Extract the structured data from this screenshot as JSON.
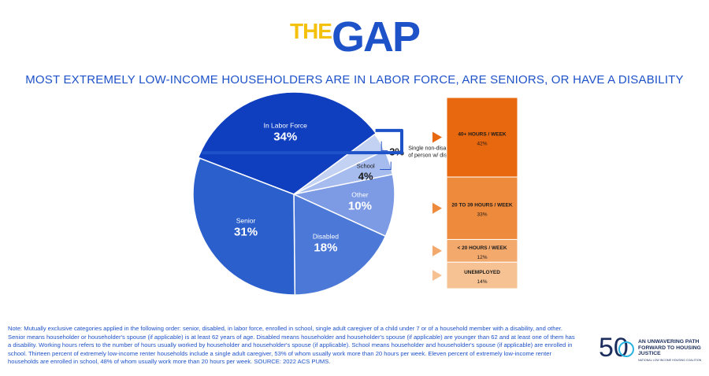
{
  "brand": {
    "the": "THE",
    "gap": "GAP"
  },
  "headline": "MOST EXTREMELY LOW-INCOME HOUSEHOLDERS ARE IN LABOR FORCE, ARE SENIORS, OR HAVE A DISABILITY",
  "chart_data": [
    {
      "type": "pie",
      "slices": [
        {
          "label": "In Labor Force",
          "value_label": "34%",
          "value": 34,
          "color": "#0f3fbf"
        },
        {
          "label": "Single non-disabled non-senior caregiver of person w/ disability or young child",
          "value_label": "3%",
          "value": 3,
          "color": "#c3d1f2"
        },
        {
          "label": "School",
          "value_label": "4%",
          "value": 4,
          "color": "#a6bbee"
        },
        {
          "label": "Other",
          "value_label": "10%",
          "value": 10,
          "color": "#7d9be5"
        },
        {
          "label": "Disabled",
          "value_label": "18%",
          "value": 18,
          "color": "#4c79d8"
        },
        {
          "label": "Senior",
          "value_label": "31%",
          "value": 31,
          "color": "#2b5fcc"
        }
      ]
    },
    {
      "type": "bar",
      "stacked": true,
      "categories": [
        "40+ HOURS / WEEK",
        "20 TO 39 HOURS / WEEK",
        "< 20 HOURS / WEEK",
        "UNEMPLOYED"
      ],
      "values": [
        42,
        33,
        12,
        14
      ],
      "value_labels": [
        "42%",
        "33%",
        "12%",
        "14%"
      ],
      "colors": [
        "#e8680f",
        "#ee8a3c",
        "#f3a86c",
        "#f6c193"
      ]
    }
  ],
  "note": "Note: Mutually exclusive categories applied in the following order: senior, disabled, in labor force, enrolled in school, single adult caregiver of a child under 7 or of a household member with a disability, and other. Senior means householder or householder's spouse (if applicable) is at least 62 years of age. Disabled means householder and householder's spouse (if applicable) are younger than 62 and at least one of them has a disability. Working hours refers to the number of hours usually worked by householder and householder's spouse (if applicable). School means householder and householder's spouse (if applicable) are enrolled in school. Thirteen percent of extremely low-income renter households include a single adult caregiver, 53% of whom usually work more than 20 hours per week. Eleven percent of extremely low-income renter households are enrolled in school, 48% of whom usually work more than 20 hours per week. SOURCE: 2022 ACS PUMS.",
  "logo": {
    "number": "50",
    "tagline": "AN UNWAVERING PATH FORWARD TO HOUSING JUSTICE",
    "org": "NATIONAL LOW INCOME HOUSING COALITION"
  }
}
